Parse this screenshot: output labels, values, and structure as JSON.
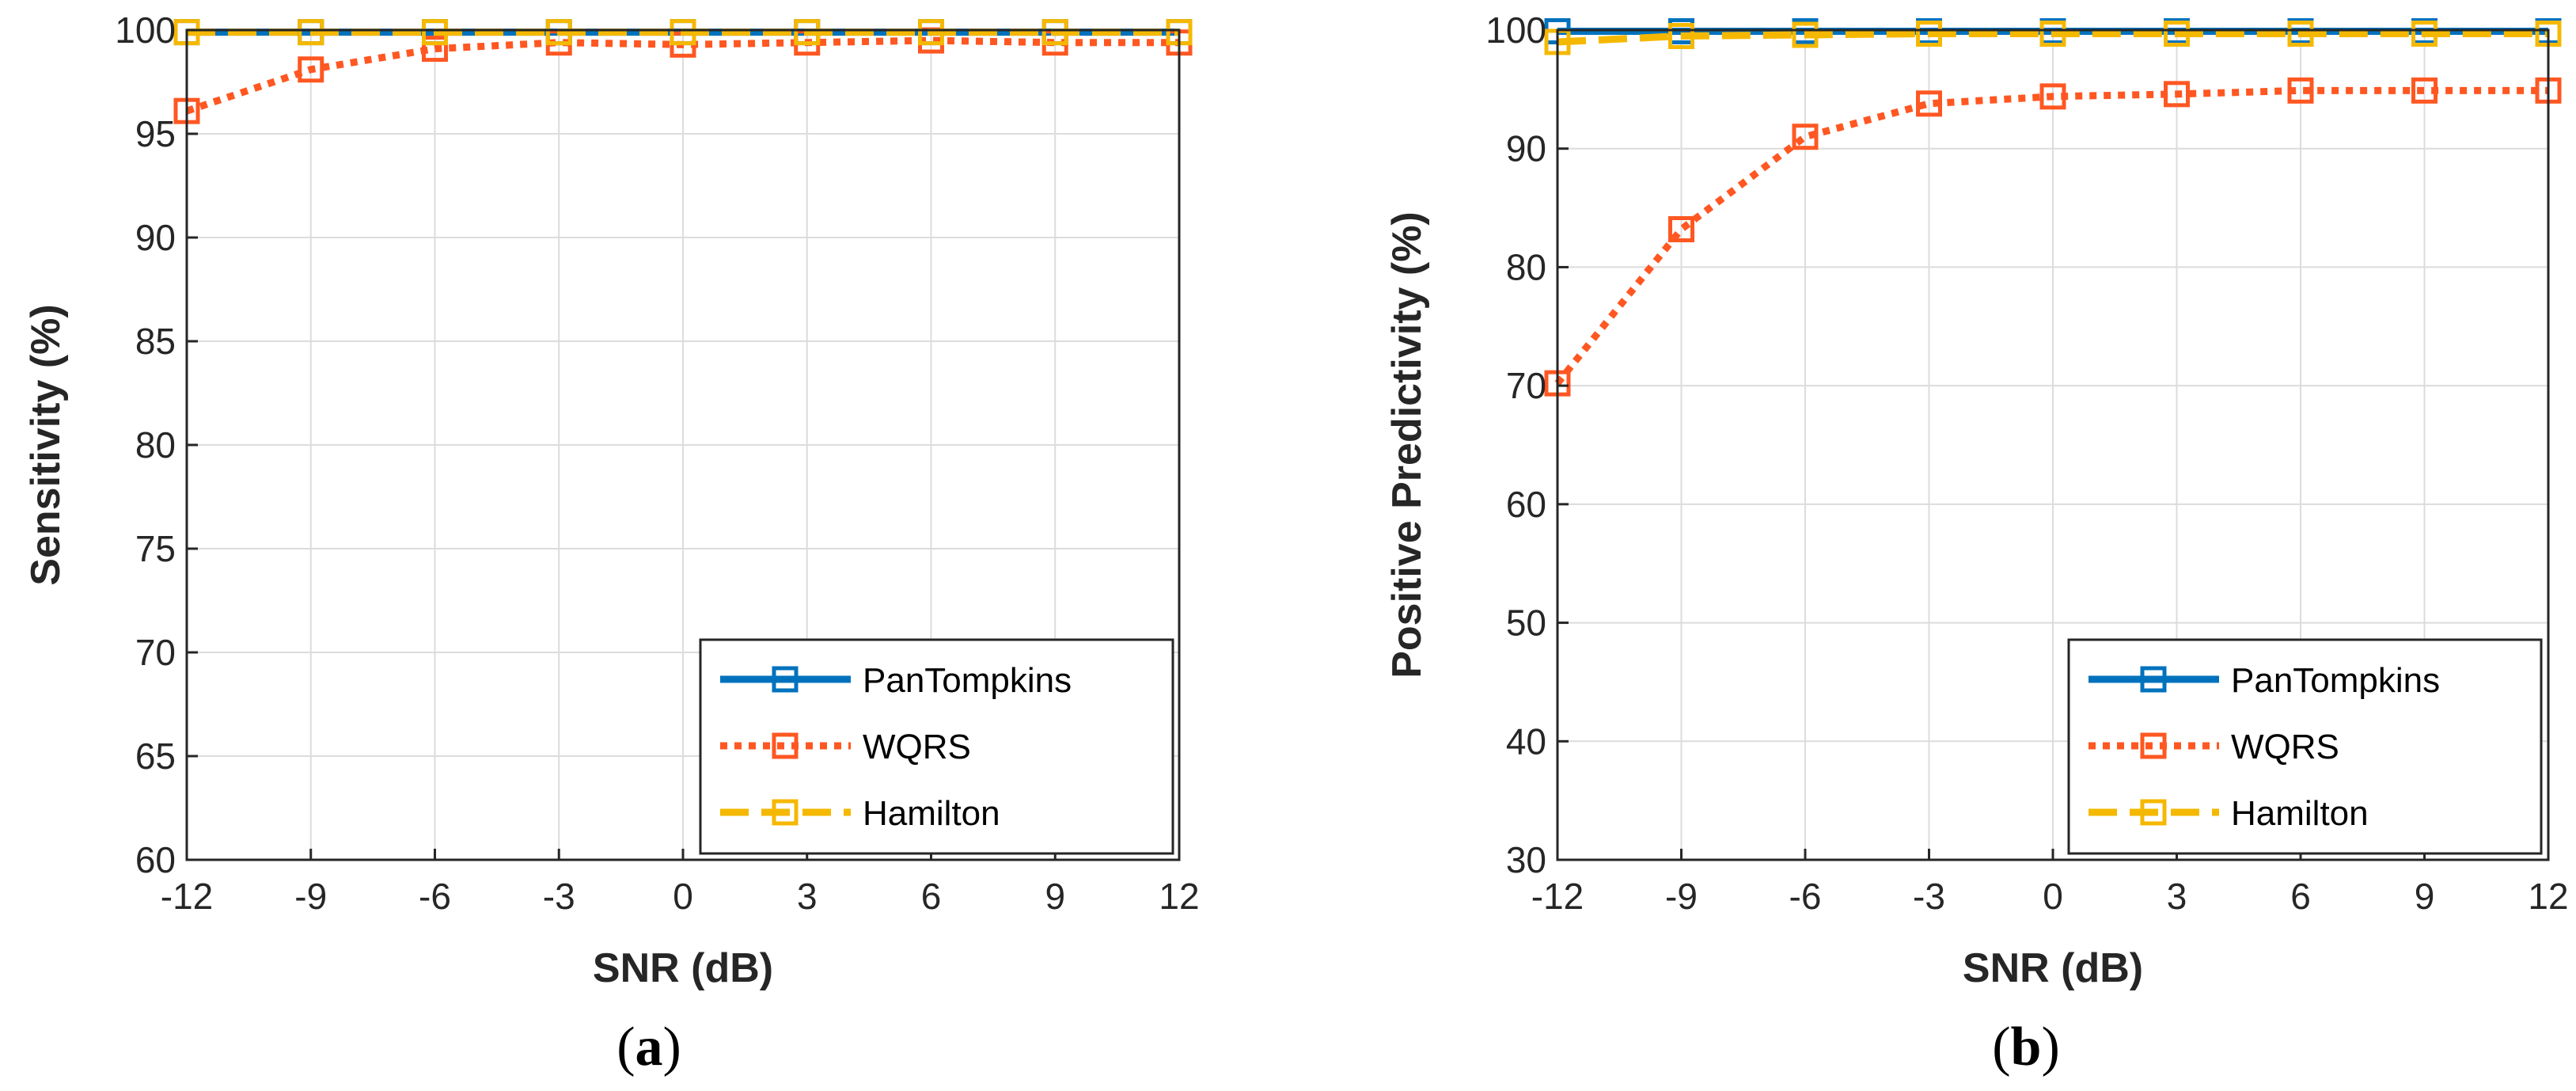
{
  "chart_data": [
    {
      "type": "line",
      "caption_open": "(",
      "caption_letter": "a",
      "caption_close": ")",
      "xlabel": "SNR (dB)",
      "ylabel": "Sensitivity (%)",
      "xlim": [
        -12,
        12
      ],
      "ylim": [
        60,
        100
      ],
      "grid": true,
      "legend_position": "bottom-right",
      "x": [
        -12,
        -9,
        -6,
        -3,
        0,
        3,
        6,
        9,
        12
      ],
      "x_tick_labels": [
        "-12",
        "-9",
        "-6",
        "-3",
        "0",
        "3",
        "6",
        "9",
        "12"
      ],
      "y_ticks": [
        60,
        65,
        70,
        75,
        80,
        85,
        90,
        95,
        100
      ],
      "y_tick_labels": [
        "60",
        "65",
        "70",
        "75",
        "80",
        "85",
        "90",
        "95",
        "100"
      ],
      "series": [
        {
          "name": "PanTompkins",
          "color": "#0072BD",
          "style": "solid",
          "values": [
            99.9,
            99.9,
            99.9,
            99.9,
            99.9,
            99.9,
            99.9,
            99.9,
            99.9
          ]
        },
        {
          "name": "WQRS",
          "color": "#FF5722",
          "style": "dotted",
          "values": [
            96.1,
            98.1,
            99.1,
            99.4,
            99.3,
            99.4,
            99.5,
            99.4,
            99.4
          ]
        },
        {
          "name": "Hamilton",
          "color": "#F5B800",
          "style": "dashed",
          "values": [
            99.9,
            99.9,
            99.9,
            99.9,
            99.9,
            99.9,
            99.9,
            99.9,
            99.9
          ]
        }
      ]
    },
    {
      "type": "line",
      "caption_open": "(",
      "caption_letter": "b",
      "caption_close": ")",
      "xlabel": "SNR (dB)",
      "ylabel": "Positive Predictivity (%)",
      "xlim": [
        -12,
        12
      ],
      "ylim": [
        30,
        100
      ],
      "grid": true,
      "legend_position": "bottom-right",
      "x": [
        -12,
        -9,
        -6,
        -3,
        0,
        3,
        6,
        9,
        12
      ],
      "x_tick_labels": [
        "-12",
        "-9",
        "-6",
        "-3",
        "0",
        "3",
        "6",
        "9",
        "12"
      ],
      "y_ticks": [
        30,
        40,
        50,
        60,
        70,
        80,
        90,
        100
      ],
      "y_tick_labels": [
        "30",
        "40",
        "50",
        "60",
        "70",
        "80",
        "90",
        "100"
      ],
      "series": [
        {
          "name": "PanTompkins",
          "color": "#0072BD",
          "style": "solid",
          "values": [
            99.9,
            99.9,
            99.9,
            99.9,
            99.9,
            99.9,
            99.9,
            99.9,
            99.9
          ]
        },
        {
          "name": "WQRS",
          "color": "#FF5722",
          "style": "dotted",
          "values": [
            70.2,
            83.2,
            91.0,
            93.8,
            94.4,
            94.6,
            94.9,
            94.9,
            94.9
          ]
        },
        {
          "name": "Hamilton",
          "color": "#F5B800",
          "style": "dashed",
          "values": [
            99.0,
            99.5,
            99.6,
            99.7,
            99.7,
            99.7,
            99.7,
            99.7,
            99.7
          ]
        }
      ]
    }
  ]
}
